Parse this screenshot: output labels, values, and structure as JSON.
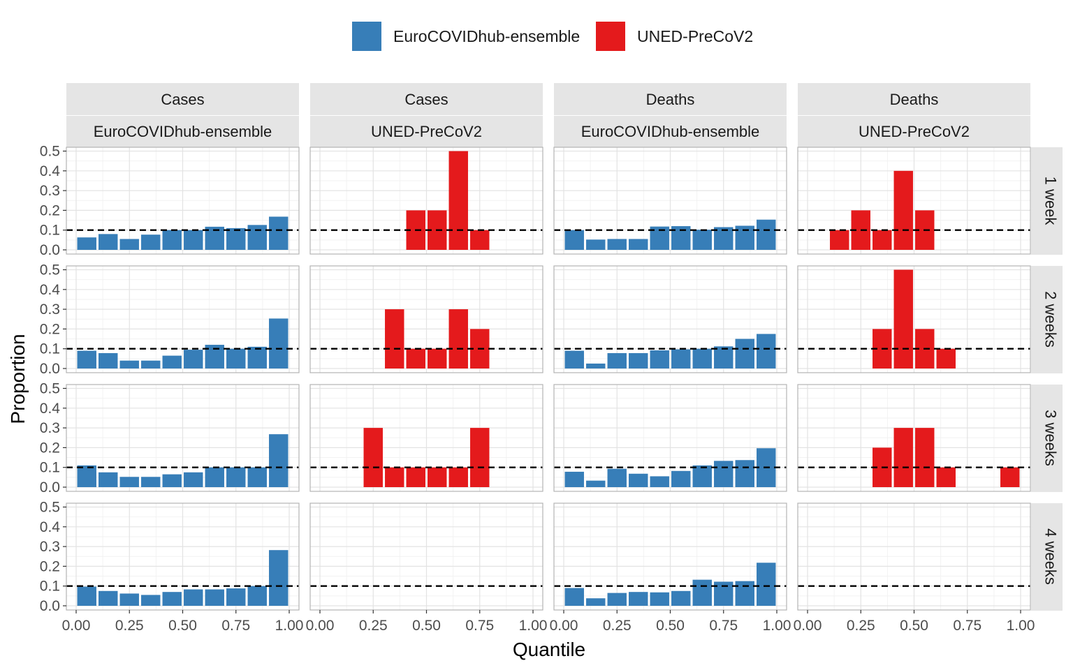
{
  "colors": {
    "EuroCOVIDhub-ensemble": "#377EB8",
    "UNED-PreCoV2": "#E41A1C",
    "strip_bg": "#E5E5E5",
    "grid": "#EBEBEB",
    "panel_border": "#B3B3B3",
    "reference_line": "#000000"
  },
  "chart_data": {
    "type": "bar",
    "xlabel": "Quantile",
    "ylabel": "Proportion",
    "legend": {
      "position": "top",
      "entries": [
        "EuroCOVIDhub-ensemble",
        "UNED-PreCoV2"
      ]
    },
    "facet_columns": [
      {
        "target": "Cases",
        "model": "EuroCOVIDhub-ensemble"
      },
      {
        "target": "Cases",
        "model": "UNED-PreCoV2"
      },
      {
        "target": "Deaths",
        "model": "EuroCOVIDhub-ensemble"
      },
      {
        "target": "Deaths",
        "model": "UNED-PreCoV2"
      }
    ],
    "facet_rows": [
      "1 week",
      "2 weeks",
      "3 weeks",
      "4 weeks"
    ],
    "xlim": [
      0,
      1
    ],
    "ylim": [
      0,
      0.5
    ],
    "x_ticks": [
      "0.00",
      "0.25",
      "0.50",
      "0.75",
      "1.00"
    ],
    "y_ticks": [
      "0.0",
      "0.1",
      "0.2",
      "0.3",
      "0.4",
      "0.5"
    ],
    "reference_line_y": 0.1,
    "bin_centers": [
      0.05,
      0.15,
      0.25,
      0.35,
      0.45,
      0.55,
      0.65,
      0.75,
      0.85,
      0.95
    ],
    "grid": true,
    "panels": [
      {
        "row": "1 week",
        "target": "Cases",
        "model": "EuroCOVIDhub-ensemble",
        "values": [
          0.063,
          0.08,
          0.055,
          0.077,
          0.1,
          0.1,
          0.117,
          0.11,
          0.126,
          0.168
        ]
      },
      {
        "row": "1 week",
        "target": "Cases",
        "model": "UNED-PreCoV2",
        "values": [
          0,
          0,
          0,
          0,
          0.2,
          0.2,
          0.5,
          0.1,
          0,
          0
        ]
      },
      {
        "row": "1 week",
        "target": "Deaths",
        "model": "EuroCOVIDhub-ensemble",
        "values": [
          0.1,
          0.052,
          0.055,
          0.055,
          0.118,
          0.12,
          0.102,
          0.115,
          0.122,
          0.153
        ]
      },
      {
        "row": "1 week",
        "target": "Deaths",
        "model": "UNED-PreCoV2",
        "values": [
          0,
          0.1,
          0.2,
          0.1,
          0.4,
          0.2,
          0,
          0,
          0,
          0
        ]
      },
      {
        "row": "2 weeks",
        "target": "Cases",
        "model": "EuroCOVIDhub-ensemble",
        "values": [
          0.09,
          0.078,
          0.04,
          0.04,
          0.065,
          0.095,
          0.12,
          0.1,
          0.11,
          0.253
        ]
      },
      {
        "row": "2 weeks",
        "target": "Cases",
        "model": "UNED-PreCoV2",
        "values": [
          0,
          0,
          0,
          0.3,
          0.1,
          0.1,
          0.3,
          0.2,
          0,
          0
        ]
      },
      {
        "row": "2 weeks",
        "target": "Deaths",
        "model": "EuroCOVIDhub-ensemble",
        "values": [
          0.09,
          0.025,
          0.078,
          0.078,
          0.092,
          0.097,
          0.1,
          0.112,
          0.15,
          0.175
        ]
      },
      {
        "row": "2 weeks",
        "target": "Deaths",
        "model": "UNED-PreCoV2",
        "values": [
          0,
          0,
          0,
          0.2,
          0.5,
          0.2,
          0.1,
          0,
          0,
          0
        ]
      },
      {
        "row": "3 weeks",
        "target": "Cases",
        "model": "EuroCOVIDhub-ensemble",
        "values": [
          0.11,
          0.075,
          0.052,
          0.052,
          0.065,
          0.075,
          0.1,
          0.1,
          0.1,
          0.268
        ]
      },
      {
        "row": "3 weeks",
        "target": "Cases",
        "model": "UNED-PreCoV2",
        "values": [
          0,
          0,
          0.3,
          0.1,
          0.1,
          0.1,
          0.1,
          0.3,
          0,
          0
        ]
      },
      {
        "row": "3 weeks",
        "target": "Deaths",
        "model": "EuroCOVIDhub-ensemble",
        "values": [
          0.078,
          0.033,
          0.093,
          0.068,
          0.055,
          0.082,
          0.11,
          0.133,
          0.137,
          0.197
        ]
      },
      {
        "row": "3 weeks",
        "target": "Deaths",
        "model": "UNED-PreCoV2",
        "values": [
          0,
          0,
          0,
          0.2,
          0.3,
          0.3,
          0.1,
          0,
          0,
          0.1
        ]
      },
      {
        "row": "4 weeks",
        "target": "Cases",
        "model": "EuroCOVIDhub-ensemble",
        "values": [
          0.097,
          0.075,
          0.062,
          0.055,
          0.07,
          0.083,
          0.083,
          0.088,
          0.1,
          0.282
        ]
      },
      {
        "row": "4 weeks",
        "target": "Cases",
        "model": "UNED-PreCoV2",
        "values": [
          0,
          0,
          0,
          0,
          0,
          0,
          0,
          0,
          0,
          0
        ]
      },
      {
        "row": "4 weeks",
        "target": "Deaths",
        "model": "EuroCOVIDhub-ensemble",
        "values": [
          0.09,
          0.038,
          0.065,
          0.07,
          0.068,
          0.075,
          0.132,
          0.122,
          0.125,
          0.218
        ]
      },
      {
        "row": "4 weeks",
        "target": "Deaths",
        "model": "UNED-PreCoV2",
        "values": [
          0,
          0,
          0,
          0,
          0,
          0,
          0,
          0,
          0,
          0
        ]
      }
    ]
  }
}
